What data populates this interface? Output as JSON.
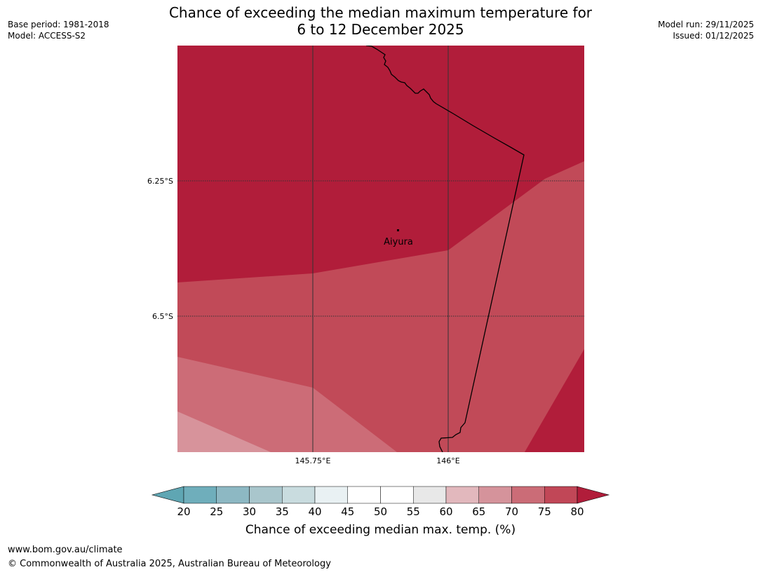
{
  "title": {
    "line1": "Chance of exceeding the median maximum temperature for",
    "line2": "6 to 12 December 2025"
  },
  "meta_left": {
    "base_period": "Base period: 1981-2018",
    "model": "Model: ACCESS-S2"
  },
  "meta_right": {
    "model_run": "Model run: 29/11/2025",
    "issued": "Issued: 01/12/2025"
  },
  "map": {
    "lat_labels": [
      "6.25°S",
      "6.5°S"
    ],
    "lon_labels": [
      "145.75°E",
      "146°E"
    ],
    "place": {
      "name": "Aiyura"
    },
    "region_colors": {
      "p75_80": "#b11d3a",
      "p70_75": "#c14a58",
      "p65_70": "#cc6c77",
      "p60_65": "#d7939b",
      "border": "#000000",
      "gridline": "#333333"
    }
  },
  "colorbar": {
    "title": "Chance of exceeding median max. temp. (%)",
    "ticks": [
      "20",
      "25",
      "30",
      "35",
      "40",
      "45",
      "50",
      "55",
      "60",
      "65",
      "70",
      "75",
      "80"
    ],
    "colors": [
      "#5fa6b3",
      "#6faebb",
      "#8db8c3",
      "#a9c6cc",
      "#c9dcdf",
      "#e9f1f3",
      "#ffffff",
      "#ffffff",
      "#e8e8e8",
      "#e2b8bd",
      "#d5939b",
      "#cb6c77",
      "#c14757",
      "#b11d3a"
    ]
  },
  "footer": {
    "url": "www.bom.gov.au/climate",
    "copyright": "© Commonwealth of Australia 2025, Australian Bureau of Meteorology"
  }
}
